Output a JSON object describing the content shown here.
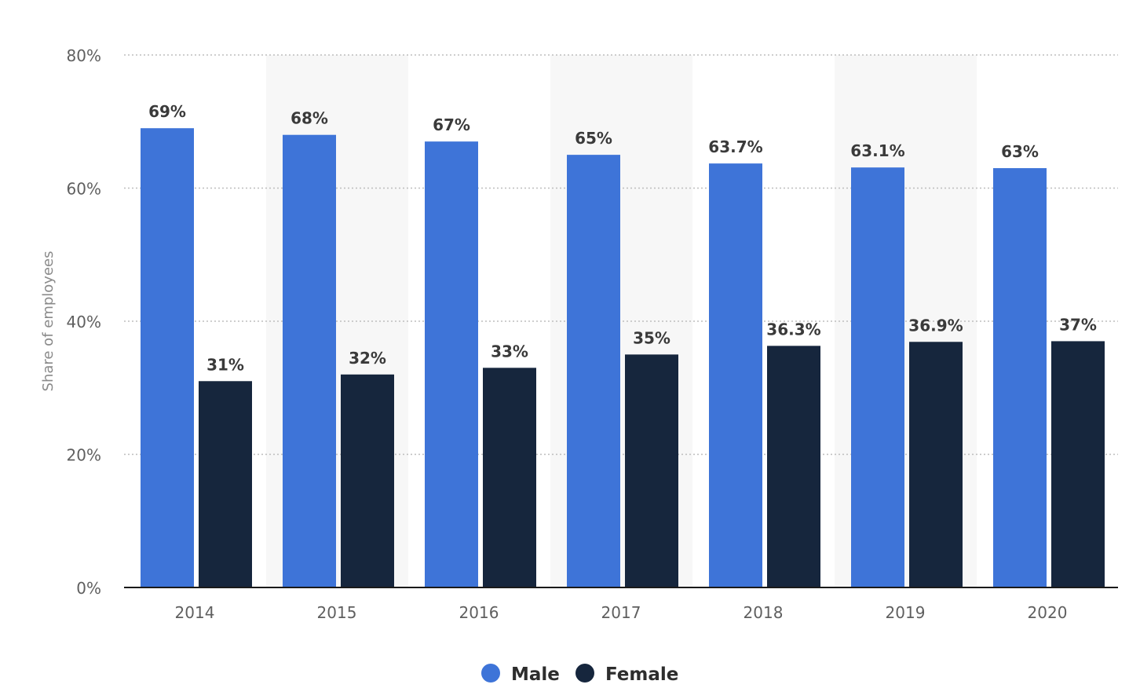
{
  "chart_data": {
    "type": "bar",
    "categories": [
      "2014",
      "2015",
      "2016",
      "2017",
      "2018",
      "2019",
      "2020"
    ],
    "series": [
      {
        "name": "Male",
        "color": "#3e74d8",
        "values": [
          69,
          68,
          67,
          65,
          63.7,
          63.1,
          63
        ],
        "labels": [
          "69%",
          "68%",
          "67%",
          "65%",
          "63.7%",
          "63.1%",
          "63%"
        ]
      },
      {
        "name": "Female",
        "color": "#16263d",
        "values": [
          31,
          32,
          33,
          35,
          36.3,
          36.9,
          37
        ],
        "labels": [
          "31%",
          "32%",
          "33%",
          "35%",
          "36.3%",
          "36.9%",
          "37%"
        ]
      }
    ],
    "ylabel": "Share of employees",
    "ylim": [
      0,
      80
    ],
    "yticks": [
      0,
      20,
      40,
      60,
      80
    ],
    "ytick_labels": [
      "0%",
      "20%",
      "40%",
      "60%",
      "80%"
    ],
    "grid": true,
    "legend_position": "bottom-center"
  }
}
